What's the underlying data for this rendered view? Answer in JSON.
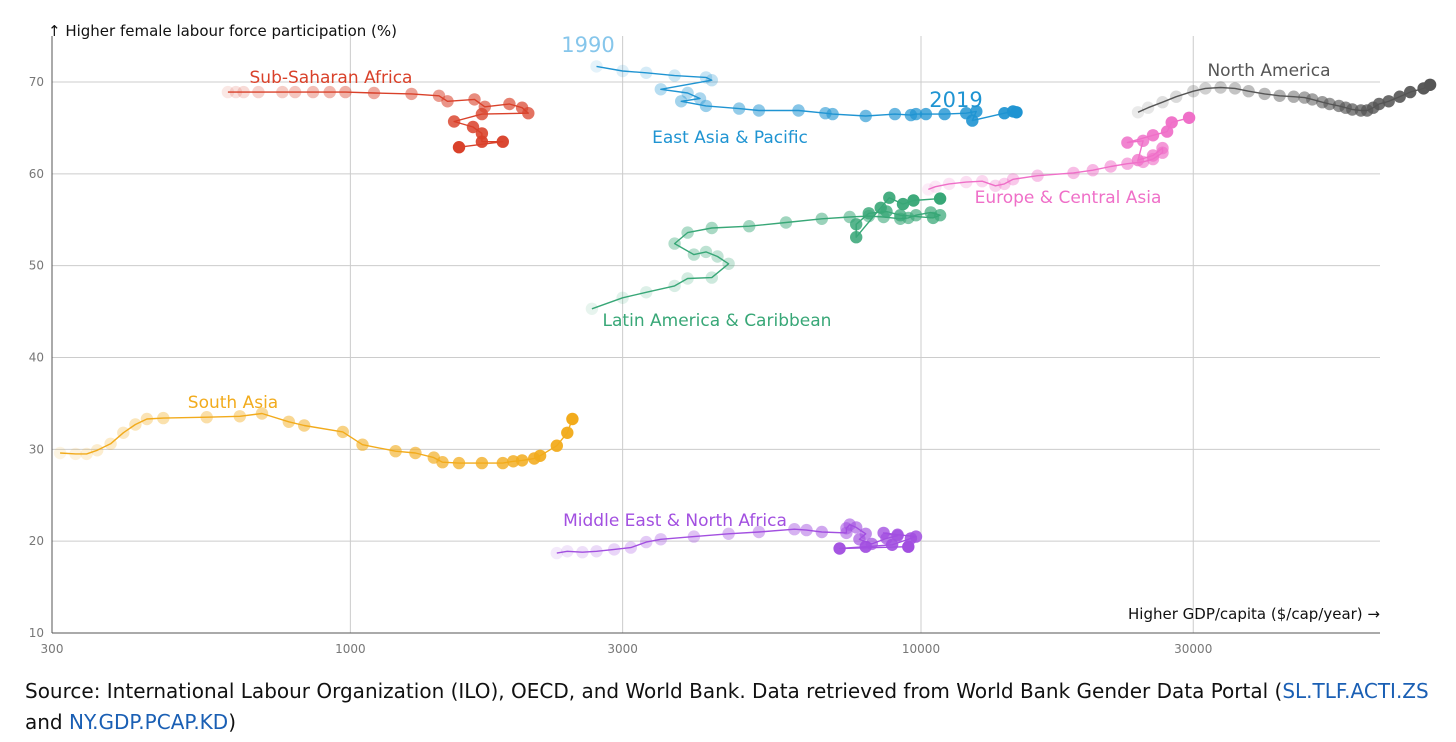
{
  "chart_data": {
    "type": "line",
    "title": "",
    "ylabel": "↑ Higher female labour force participation (%)",
    "xlabel": "Higher GDP/capita ($/cap/year) →",
    "x_scale": "log",
    "xlim": [
      300,
      65000
    ],
    "ylim": [
      10,
      75
    ],
    "x_ticks": [
      300,
      1000,
      3000,
      10000,
      30000
    ],
    "x_tick_labels": [
      "300",
      "1000",
      "3000",
      "10000",
      "30000"
    ],
    "y_ticks": [
      10,
      20,
      30,
      40,
      50,
      60,
      70
    ],
    "y_tick_labels": [
      "10",
      "20",
      "30",
      "40",
      "50",
      "60",
      "70"
    ],
    "grid": true,
    "year_labels": {
      "start": "1990",
      "end": "2019"
    },
    "series": [
      {
        "name": "Sub-Saharan Africa",
        "color": "#d9412a",
        "points": [
          [
            610,
            68.9
          ],
          [
            630,
            68.9
          ],
          [
            650,
            68.9
          ],
          [
            690,
            68.9
          ],
          [
            760,
            68.9
          ],
          [
            800,
            68.9
          ],
          [
            860,
            68.9
          ],
          [
            920,
            68.9
          ],
          [
            980,
            68.9
          ],
          [
            1100,
            68.8
          ],
          [
            1280,
            68.7
          ],
          [
            1430,
            68.5
          ],
          [
            1480,
            67.9
          ],
          [
            1650,
            68.1
          ],
          [
            1720,
            67.3
          ],
          [
            1900,
            67.6
          ],
          [
            2000,
            67.2
          ],
          [
            2050,
            66.6
          ],
          [
            1700,
            66.5
          ],
          [
            1520,
            65.7
          ],
          [
            1640,
            65.1
          ],
          [
            1700,
            64.4
          ],
          [
            1700,
            63.5
          ],
          [
            1850,
            63.5
          ],
          [
            1550,
            62.9
          ]
        ]
      },
      {
        "name": "East Asia & Pacific",
        "color": "#1f94d2",
        "points": [
          [
            2700,
            71.7
          ],
          [
            3000,
            71.2
          ],
          [
            3300,
            71.0
          ],
          [
            3700,
            70.7
          ],
          [
            4200,
            70.5
          ],
          [
            4300,
            70.2
          ],
          [
            3500,
            69.2
          ],
          [
            3900,
            68.8
          ],
          [
            4100,
            68.2
          ],
          [
            3800,
            67.9
          ],
          [
            4200,
            67.4
          ],
          [
            4800,
            67.1
          ],
          [
            5200,
            66.9
          ],
          [
            6100,
            66.9
          ],
          [
            6800,
            66.6
          ],
          [
            7000,
            66.5
          ],
          [
            8000,
            66.3
          ],
          [
            9000,
            66.5
          ],
          [
            9600,
            66.4
          ],
          [
            9800,
            66.5
          ],
          [
            10200,
            66.5
          ],
          [
            11000,
            66.5
          ],
          [
            12000,
            66.6
          ],
          [
            12500,
            66.8
          ],
          [
            12300,
            65.8
          ],
          [
            14000,
            66.6
          ],
          [
            14500,
            66.8
          ],
          [
            14700,
            66.7
          ]
        ]
      },
      {
        "name": "North America",
        "color": "#555555",
        "points": [
          [
            24000,
            66.7
          ],
          [
            25000,
            67.2
          ],
          [
            26500,
            67.8
          ],
          [
            28000,
            68.4
          ],
          [
            30000,
            69.0
          ],
          [
            31500,
            69.3
          ],
          [
            33500,
            69.4
          ],
          [
            35500,
            69.3
          ],
          [
            37500,
            69.0
          ],
          [
            40000,
            68.7
          ],
          [
            42500,
            68.5
          ],
          [
            45000,
            68.4
          ],
          [
            47000,
            68.3
          ],
          [
            48500,
            68.1
          ],
          [
            50500,
            67.8
          ],
          [
            52000,
            67.6
          ],
          [
            54000,
            67.4
          ],
          [
            55500,
            67.2
          ],
          [
            57000,
            67.0
          ],
          [
            59000,
            66.9
          ],
          [
            60500,
            66.9
          ],
          [
            62000,
            67.2
          ],
          [
            63500,
            67.6
          ],
          [
            66000,
            67.9
          ],
          [
            69000,
            68.4
          ],
          [
            72000,
            68.9
          ],
          [
            76000,
            69.3
          ],
          [
            78000,
            69.7
          ]
        ]
      },
      {
        "name": "Europe & Central Asia",
        "color": "#ef6fc8",
        "points": [
          [
            10300,
            58.3
          ],
          [
            10600,
            58.6
          ],
          [
            11200,
            58.9
          ],
          [
            12000,
            59.1
          ],
          [
            12800,
            59.2
          ],
          [
            13500,
            58.7
          ],
          [
            14000,
            58.9
          ],
          [
            14500,
            59.4
          ],
          [
            16000,
            59.8
          ],
          [
            18500,
            60.1
          ],
          [
            20000,
            60.4
          ],
          [
            21500,
            60.8
          ],
          [
            23000,
            61.1
          ],
          [
            24500,
            61.3
          ],
          [
            25500,
            61.6
          ],
          [
            26500,
            62.3
          ],
          [
            26500,
            62.8
          ],
          [
            25500,
            62.0
          ],
          [
            24000,
            61.5
          ],
          [
            24500,
            63.6
          ],
          [
            23000,
            63.4
          ],
          [
            25500,
            64.2
          ],
          [
            27000,
            64.6
          ],
          [
            27500,
            65.6
          ],
          [
            29500,
            66.1
          ]
        ]
      },
      {
        "name": "Latin America & Caribbean",
        "color": "#38a777",
        "points": [
          [
            2650,
            45.3
          ],
          [
            3000,
            46.5
          ],
          [
            3300,
            47.1
          ],
          [
            3700,
            47.8
          ],
          [
            3900,
            48.6
          ],
          [
            4300,
            48.7
          ],
          [
            4600,
            50.2
          ],
          [
            4400,
            51.0
          ],
          [
            4200,
            51.5
          ],
          [
            4000,
            51.2
          ],
          [
            3700,
            52.4
          ],
          [
            3900,
            53.6
          ],
          [
            4300,
            54.1
          ],
          [
            5000,
            54.3
          ],
          [
            5800,
            54.7
          ],
          [
            6700,
            55.1
          ],
          [
            7500,
            55.3
          ],
          [
            8100,
            55.4
          ],
          [
            8600,
            55.3
          ],
          [
            9200,
            55.1
          ],
          [
            9500,
            55.2
          ],
          [
            9800,
            55.5
          ],
          [
            10400,
            55.8
          ],
          [
            10800,
            55.5
          ],
          [
            10500,
            55.2
          ],
          [
            9200,
            55.5
          ],
          [
            8700,
            55.9
          ],
          [
            8100,
            55.7
          ],
          [
            7700,
            54.5
          ],
          [
            7700,
            53.1
          ],
          [
            8500,
            56.3
          ],
          [
            8800,
            57.4
          ],
          [
            9300,
            56.7
          ],
          [
            9700,
            57.1
          ],
          [
            10800,
            57.3
          ]
        ]
      },
      {
        "name": "South Asia",
        "color": "#f2ab1c",
        "points": [
          [
            310,
            29.6
          ],
          [
            330,
            29.5
          ],
          [
            345,
            29.5
          ],
          [
            360,
            29.9
          ],
          [
            380,
            30.6
          ],
          [
            400,
            31.8
          ],
          [
            420,
            32.7
          ],
          [
            440,
            33.3
          ],
          [
            470,
            33.4
          ],
          [
            560,
            33.5
          ],
          [
            640,
            33.6
          ],
          [
            700,
            33.9
          ],
          [
            780,
            33.0
          ],
          [
            830,
            32.6
          ],
          [
            970,
            31.9
          ],
          [
            1050,
            30.5
          ],
          [
            1200,
            29.8
          ],
          [
            1300,
            29.6
          ],
          [
            1400,
            29.1
          ],
          [
            1450,
            28.6
          ],
          [
            1550,
            28.5
          ],
          [
            1700,
            28.5
          ],
          [
            1850,
            28.5
          ],
          [
            1930,
            28.7
          ],
          [
            2000,
            28.8
          ],
          [
            2100,
            29.0
          ],
          [
            2150,
            29.3
          ],
          [
            2300,
            30.4
          ],
          [
            2400,
            31.8
          ],
          [
            2450,
            33.3
          ]
        ]
      },
      {
        "name": "Middle East & North Africa",
        "color": "#a24fe0",
        "points": [
          [
            2300,
            18.7
          ],
          [
            2400,
            18.9
          ],
          [
            2550,
            18.8
          ],
          [
            2700,
            18.9
          ],
          [
            2900,
            19.1
          ],
          [
            3100,
            19.3
          ],
          [
            3300,
            19.9
          ],
          [
            3500,
            20.2
          ],
          [
            4000,
            20.5
          ],
          [
            4600,
            20.8
          ],
          [
            5200,
            21.0
          ],
          [
            6000,
            21.3
          ],
          [
            6300,
            21.2
          ],
          [
            6700,
            21.0
          ],
          [
            7400,
            20.9
          ],
          [
            7400,
            21.4
          ],
          [
            7500,
            21.8
          ],
          [
            7700,
            21.5
          ],
          [
            8000,
            20.8
          ],
          [
            7800,
            20.2
          ],
          [
            8200,
            19.7
          ],
          [
            8700,
            20.3
          ],
          [
            9100,
            20.6
          ],
          [
            8600,
            20.9
          ],
          [
            9100,
            20.7
          ],
          [
            9800,
            20.5
          ],
          [
            9600,
            20.3
          ],
          [
            8900,
            19.6
          ],
          [
            8000,
            19.4
          ],
          [
            7200,
            19.2
          ],
          [
            9500,
            19.4
          ]
        ]
      }
    ],
    "annotations": [
      {
        "text": "Sub-Saharan Africa",
        "color": "#d9412a"
      },
      {
        "text": "East Asia & Pacific",
        "color": "#1f94d2"
      },
      {
        "text": "North America",
        "color": "#555555"
      },
      {
        "text": "Europe & Central Asia",
        "color": "#ef6fc8"
      },
      {
        "text": "Latin America & Caribbean",
        "color": "#38a777"
      },
      {
        "text": "South Asia",
        "color": "#f2ab1c"
      },
      {
        "text": "Middle East & North Africa",
        "color": "#a24fe0"
      }
    ]
  },
  "colors": {
    "year_start": "#86c6eb",
    "year_end": "#1f94d2",
    "grid": "#cccccc",
    "axis": "#555555",
    "link": "#1a5fb4"
  },
  "source": {
    "prefix": "Source: International Labour Organization (ILO), OECD, and World Bank. Data retrieved from World Bank Gender Data Portal (",
    "link1": "SL.TLF.ACTI.ZS",
    "middle": " and ",
    "link2": "NY.GDP.PCAP.KD",
    "suffix": ")"
  }
}
